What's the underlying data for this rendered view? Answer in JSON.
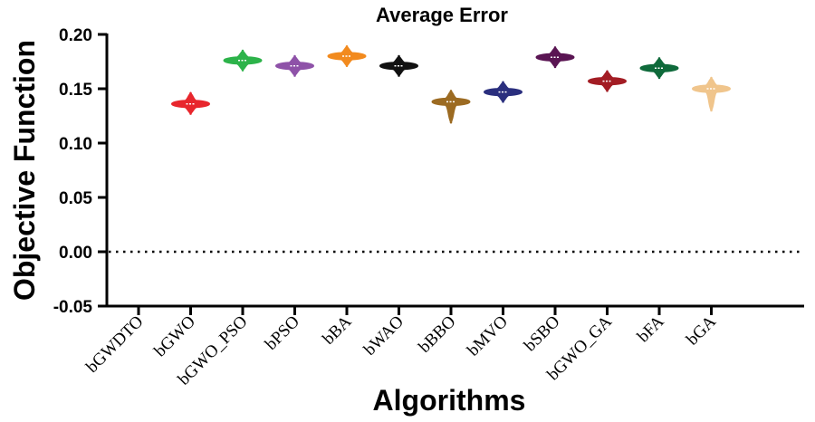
{
  "chart_data": {
    "type": "violin",
    "title": "Average Error",
    "xlabel": "Algorithms",
    "ylabel": "Objective Function",
    "ylim": [
      -0.05,
      0.2
    ],
    "yticks": [
      "0.20",
      "0.15",
      "0.10",
      "0.05",
      "0.00",
      "-0.05"
    ],
    "reference_line": 0,
    "categories": [
      "bGWDTO",
      "bGWO",
      "bGWO_PSO",
      "bPSO",
      "bBA",
      "bWAO",
      "bBBO",
      "bMVO",
      "bSBO",
      "bGWO_GA",
      "bFA",
      "bGA"
    ],
    "series": [
      {
        "median": null,
        "min": null,
        "max": null,
        "color": "#ffffff"
      },
      {
        "median": 0.136,
        "min": 0.127,
        "max": 0.146,
        "color": "#e8262d"
      },
      {
        "median": 0.176,
        "min": 0.167,
        "max": 0.185,
        "color": "#2db34a"
      },
      {
        "median": 0.171,
        "min": 0.162,
        "max": 0.18,
        "color": "#8e52a8"
      },
      {
        "median": 0.18,
        "min": 0.171,
        "max": 0.189,
        "color": "#f28a1e"
      },
      {
        "median": 0.171,
        "min": 0.162,
        "max": 0.18,
        "color": "#111111"
      },
      {
        "median": 0.138,
        "min": 0.119,
        "max": 0.148,
        "color": "#9c6b22"
      },
      {
        "median": 0.147,
        "min": 0.138,
        "max": 0.156,
        "color": "#2a2f7e"
      },
      {
        "median": 0.179,
        "min": 0.17,
        "max": 0.188,
        "color": "#5a1553"
      },
      {
        "median": 0.157,
        "min": 0.148,
        "max": 0.166,
        "color": "#a31d24"
      },
      {
        "median": 0.169,
        "min": 0.16,
        "max": 0.178,
        "color": "#0f6a3b"
      },
      {
        "median": 0.15,
        "min": 0.13,
        "max": 0.16,
        "color": "#f0c58c"
      }
    ]
  }
}
